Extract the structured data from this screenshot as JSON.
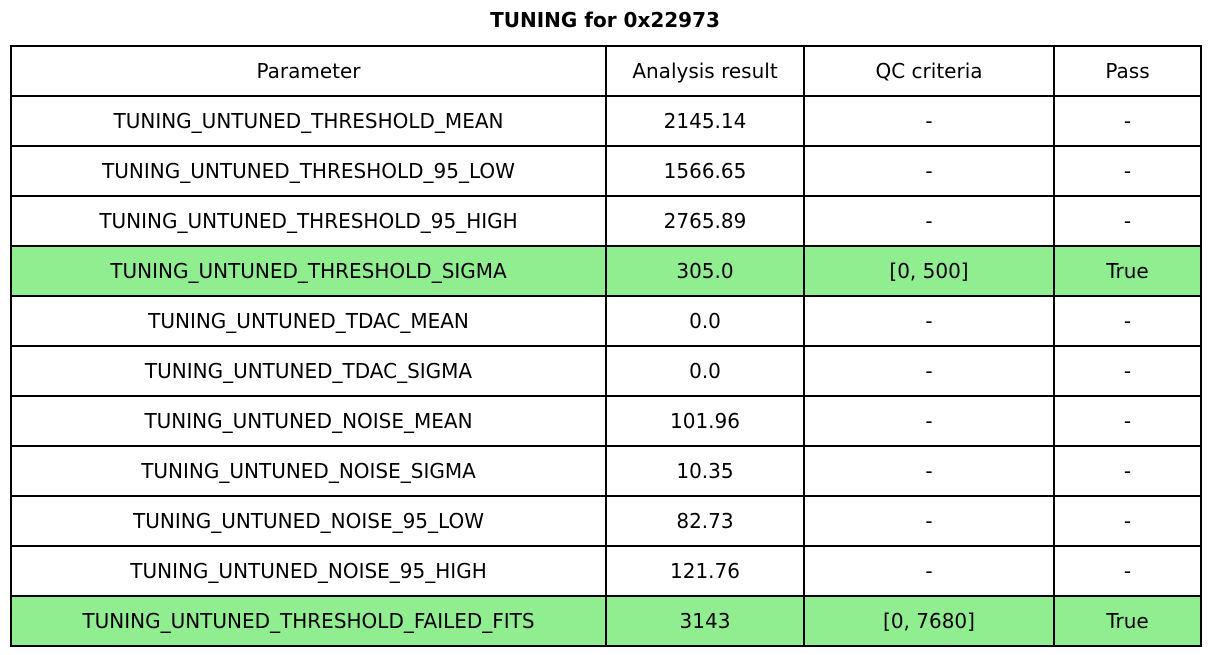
{
  "chart_data": {
    "type": "table",
    "title": "TUNING for 0x22973",
    "columns": [
      "Parameter",
      "Analysis result",
      "QC criteria",
      "Pass"
    ],
    "rows": [
      {
        "parameter": "TUNING_UNTUNED_THRESHOLD_MEAN",
        "analysis_result": "2145.14",
        "qc_criteria": "-",
        "pass": "-",
        "highlight": false
      },
      {
        "parameter": "TUNING_UNTUNED_THRESHOLD_95_LOW",
        "analysis_result": "1566.65",
        "qc_criteria": "-",
        "pass": "-",
        "highlight": false
      },
      {
        "parameter": "TUNING_UNTUNED_THRESHOLD_95_HIGH",
        "analysis_result": "2765.89",
        "qc_criteria": "-",
        "pass": "-",
        "highlight": false
      },
      {
        "parameter": "TUNING_UNTUNED_THRESHOLD_SIGMA",
        "analysis_result": "305.0",
        "qc_criteria": "[0, 500]",
        "pass": "True",
        "highlight": true
      },
      {
        "parameter": "TUNING_UNTUNED_TDAC_MEAN",
        "analysis_result": "0.0",
        "qc_criteria": "-",
        "pass": "-",
        "highlight": false
      },
      {
        "parameter": "TUNING_UNTUNED_TDAC_SIGMA",
        "analysis_result": "0.0",
        "qc_criteria": "-",
        "pass": "-",
        "highlight": false
      },
      {
        "parameter": "TUNING_UNTUNED_NOISE_MEAN",
        "analysis_result": "101.96",
        "qc_criteria": "-",
        "pass": "-",
        "highlight": false
      },
      {
        "parameter": "TUNING_UNTUNED_NOISE_SIGMA",
        "analysis_result": "10.35",
        "qc_criteria": "-",
        "pass": "-",
        "highlight": false
      },
      {
        "parameter": "TUNING_UNTUNED_NOISE_95_LOW",
        "analysis_result": "82.73",
        "qc_criteria": "-",
        "pass": "-",
        "highlight": false
      },
      {
        "parameter": "TUNING_UNTUNED_NOISE_95_HIGH",
        "analysis_result": "121.76",
        "qc_criteria": "-",
        "pass": "-",
        "highlight": false
      },
      {
        "parameter": "TUNING_UNTUNED_THRESHOLD_FAILED_FITS",
        "analysis_result": "3143",
        "qc_criteria": "[0, 7680]",
        "pass": "True",
        "highlight": true
      }
    ],
    "layout": {
      "highlighted_row_indices": [
        3,
        10
      ],
      "grid": true,
      "header_position": "top"
    }
  },
  "colors": {
    "highlight_green": "#90ee90",
    "border": "#000000",
    "background": "#ffffff",
    "text": "#000000"
  }
}
